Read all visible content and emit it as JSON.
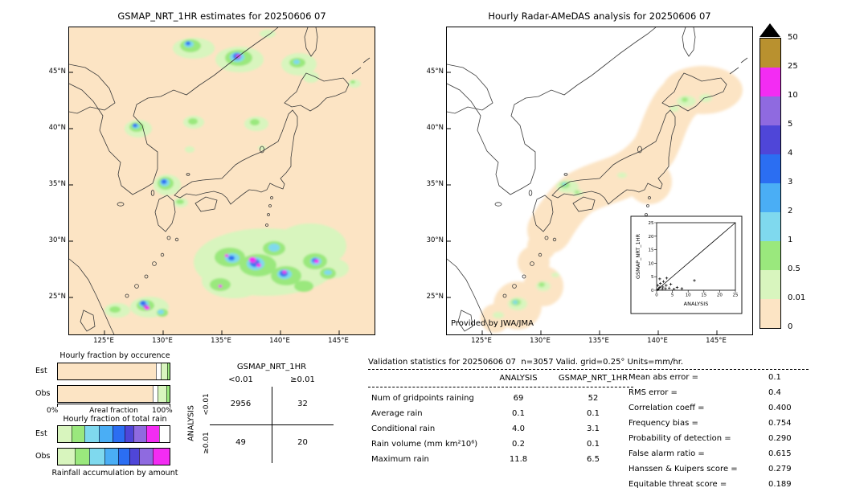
{
  "left_map": {
    "title": "GSMAP_NRT_1HR estimates for 20250606 07",
    "lat_ticks": [
      "45°N",
      "40°N",
      "35°N",
      "30°N",
      "25°N"
    ],
    "lon_ticks": [
      "125°E",
      "130°E",
      "135°E",
      "140°E",
      "145°E"
    ]
  },
  "right_map": {
    "title": "Hourly Radar-AMeDAS analysis for 20250606 07",
    "credit": "Provided by JWA/JMA",
    "lat_ticks": [
      "45°N",
      "40°N",
      "35°N",
      "30°N",
      "25°N"
    ],
    "lon_ticks": [
      "125°E",
      "130°E",
      "135°E",
      "140°E",
      "145°E"
    ],
    "inset": {
      "xlabel": "ANALYSIS",
      "ylabel": "GSMAP_NRT_1HR",
      "xticks": [
        "0",
        "5",
        "10",
        "15",
        "20",
        "25"
      ],
      "yticks": [
        "0",
        "5",
        "10",
        "15",
        "20",
        "25"
      ]
    }
  },
  "colorbar": {
    "labels": [
      "50",
      "25",
      "10",
      "5",
      "4",
      "3",
      "2",
      "1",
      "0.5",
      "0.01",
      "0"
    ],
    "colors": [
      "#b9912f",
      "#f32cf3",
      "#8f6ae0",
      "#4f46d8",
      "#2b6ef2",
      "#4aaef5",
      "#7fd9ee",
      "#9ae87d",
      "#d8f5be",
      "#fce4c4"
    ]
  },
  "occurrence_panel": {
    "title": "Hourly fraction by occurence",
    "row_labels": [
      "Est",
      "Obs"
    ],
    "axis_left": "0%",
    "axis_label": "Areal fraction",
    "axis_right": "100%"
  },
  "totalrain_panel": {
    "title": "Hourly fraction of total rain",
    "row_labels": [
      "Est",
      "Obs"
    ],
    "caption": "Rainfall accumulation by amount"
  },
  "bars": {
    "occurrence": {
      "est": [
        {
          "color": "#fce4c4",
          "pct": 88
        },
        {
          "color": "#ffffff",
          "pct": 4
        },
        {
          "color": "#d8f5be",
          "pct": 6
        },
        {
          "color": "#9ae87d",
          "pct": 2
        }
      ],
      "obs": [
        {
          "color": "#fce4c4",
          "pct": 85
        },
        {
          "color": "#ffffff",
          "pct": 4
        },
        {
          "color": "#d8f5be",
          "pct": 8
        },
        {
          "color": "#9ae87d",
          "pct": 3
        }
      ]
    },
    "total_rain": {
      "est": [
        {
          "color": "#d8f5be",
          "pct": 12
        },
        {
          "color": "#9ae87d",
          "pct": 12
        },
        {
          "color": "#7fd9ee",
          "pct": 13
        },
        {
          "color": "#4aaef5",
          "pct": 12
        },
        {
          "color": "#2b6ef2",
          "pct": 11
        },
        {
          "color": "#4f46d8",
          "pct": 8
        },
        {
          "color": "#8f6ae0",
          "pct": 11
        },
        {
          "color": "#f32cf3",
          "pct": 12
        },
        {
          "color": "#ffffff",
          "pct": 9
        }
      ],
      "obs": [
        {
          "color": "#d8f5be",
          "pct": 15
        },
        {
          "color": "#9ae87d",
          "pct": 13
        },
        {
          "color": "#7fd9ee",
          "pct": 14
        },
        {
          "color": "#4aaef5",
          "pct": 12
        },
        {
          "color": "#2b6ef2",
          "pct": 10
        },
        {
          "color": "#4f46d8",
          "pct": 9
        },
        {
          "color": "#8f6ae0",
          "pct": 12
        },
        {
          "color": "#f32cf3",
          "pct": 15
        }
      ]
    }
  },
  "contingency": {
    "col_group": "GSMAP_NRT_1HR",
    "col_headers": [
      "<0.01",
      "≥0.01"
    ],
    "row_group": "ANALYSIS",
    "row_headers": [
      "<0.01",
      "≥0.01"
    ],
    "values": [
      [
        "2956",
        "32"
      ],
      [
        "49",
        "20"
      ]
    ]
  },
  "stats": {
    "header": "Validation statistics for 20250606 07  n=3057 Valid. grid=0.25° Units=mm/hr.",
    "col1": "ANALYSIS",
    "col2": "GSMAP_NRT_1HR",
    "rows": [
      {
        "label": "Num of gridpoints raining",
        "analysis": "69",
        "gsmap": "52"
      },
      {
        "label": "Average rain",
        "analysis": "0.1",
        "gsmap": "0.1"
      },
      {
        "label": "Conditional rain",
        "analysis": "4.0",
        "gsmap": "3.1"
      },
      {
        "label": "Rain volume (mm km²10⁶)",
        "analysis": "0.2",
        "gsmap": "0.1"
      },
      {
        "label": "Maximum rain",
        "analysis": "11.8",
        "gsmap": "6.5"
      }
    ],
    "metrics": [
      {
        "label": "Mean abs error =",
        "value": "0.1"
      },
      {
        "label": "RMS error =",
        "value": "0.4"
      },
      {
        "label": "Correlation coeff =",
        "value": "0.400"
      },
      {
        "label": "Frequency bias =",
        "value": "0.754"
      },
      {
        "label": "Probability of detection =",
        "value": "0.290"
      },
      {
        "label": "False alarm ratio =",
        "value": "0.615"
      },
      {
        "label": "Hanssen & Kuipers score =",
        "value": "0.279"
      },
      {
        "label": "Equitable threat score =",
        "value": "0.189"
      }
    ]
  },
  "chart_data": [
    {
      "type": "heatmap",
      "title": "GSMAP_NRT_1HR estimates for 20250606 07",
      "x_ticks": [
        "125°E",
        "130°E",
        "135°E",
        "140°E",
        "145°E"
      ],
      "y_ticks": [
        "25°N",
        "30°N",
        "35°N",
        "40°N",
        "45°N"
      ],
      "units": "mm/hr",
      "levels": [
        0,
        0.01,
        0.5,
        1,
        2,
        3,
        4,
        5,
        10,
        25,
        50
      ],
      "summary": "Satellite rain estimates: heavy cells (5-25 mm/hr) in a band 24-29°N / 131-145°E south of Japan, near Okinawa (26°N,128°E), northern Japan Sea 45-46°N, and NW of Korea near 40°N."
    },
    {
      "type": "heatmap",
      "title": "Hourly Radar-AMeDAS analysis for 20250606 07",
      "x_ticks": [
        "125°E",
        "130°E",
        "135°E",
        "140°E",
        "145°E"
      ],
      "y_ticks": [
        "25°N",
        "30°N",
        "35°N",
        "40°N",
        "45°N"
      ],
      "units": "mm/hr",
      "levels": [
        0,
        0.01,
        0.5,
        1,
        2,
        3,
        4,
        5,
        10,
        25,
        50
      ],
      "summary": "Radar analysis within the coverage band along the Japanese archipelago: light rain (0.01-2 mm/hr) near 35°N/132-133°E, Okinawa 26°N/127-129°E, and western Hokkaido."
    },
    {
      "type": "scatter",
      "xlabel": "ANALYSIS",
      "ylabel": "GSMAP_NRT_1HR",
      "xlim": [
        0,
        25
      ],
      "ylim": [
        0,
        25
      ],
      "diagonal_line": true,
      "points": [
        [
          0.3,
          0.2
        ],
        [
          0.7,
          0.5
        ],
        [
          1,
          1
        ],
        [
          1.2,
          2.5
        ],
        [
          1.8,
          0.4
        ],
        [
          2,
          1.2
        ],
        [
          2.2,
          3.2
        ],
        [
          2.8,
          0.6
        ],
        [
          3,
          1.8
        ],
        [
          3.2,
          4.5
        ],
        [
          4,
          0.8
        ],
        [
          4.5,
          2.2
        ],
        [
          5.5,
          0.4
        ],
        [
          6.5,
          1
        ],
        [
          8,
          0.6
        ],
        [
          12,
          3.6
        ],
        [
          1,
          4.2
        ],
        [
          0.4,
          1.8
        ]
      ]
    },
    {
      "type": "table",
      "title": "Contingency table",
      "col_group": "GSMAP_NRT_1HR",
      "row_group": "ANALYSIS",
      "columns": [
        "<0.01",
        "≥0.01"
      ],
      "rows": [
        "<0.01",
        "≥0.01"
      ],
      "values": [
        [
          2956,
          32
        ],
        [
          49,
          20
        ]
      ]
    },
    {
      "type": "bar",
      "title": "Hourly fraction by occurence",
      "stacked": true,
      "categories": [
        "Est",
        "Obs"
      ],
      "xlabel": "Areal fraction",
      "xlim_pct": [
        0,
        100
      ]
    },
    {
      "type": "bar",
      "title": "Hourly fraction of total rain",
      "stacked": true,
      "categories": [
        "Est",
        "Obs"
      ],
      "note": "Rainfall accumulation by amount"
    }
  ]
}
